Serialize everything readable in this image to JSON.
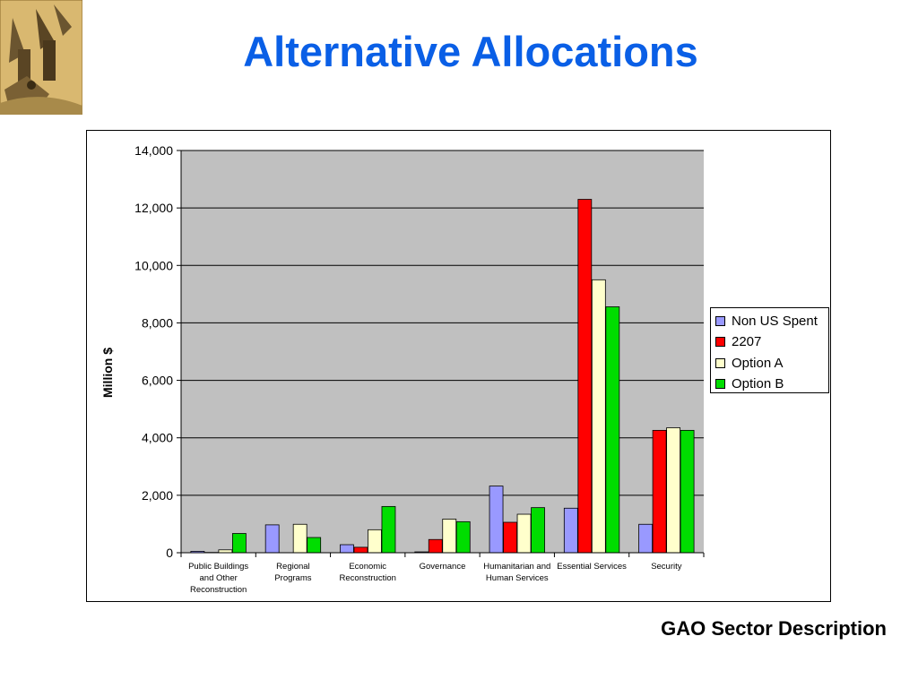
{
  "slide": {
    "title": "Alternative Allocations",
    "caption": "GAO Sector Description"
  },
  "chart_data": {
    "type": "bar",
    "ylabel": "Million $",
    "ylim": [
      0,
      14000
    ],
    "yticks": [
      "0",
      "2,000",
      "4,000",
      "6,000",
      "8,000",
      "10,000",
      "12,000",
      "14,000"
    ],
    "ytick_values": [
      0,
      2000,
      4000,
      6000,
      8000,
      10000,
      12000,
      14000
    ],
    "grid": true,
    "legend_position": "right",
    "categories": [
      [
        "Public Buildings",
        "and Other",
        "Reconstruction"
      ],
      [
        "Regional",
        "Programs"
      ],
      [
        "Economic",
        "Reconstruction"
      ],
      [
        "Governance"
      ],
      [
        "Humanitarian and",
        "Human Services"
      ],
      [
        "Essential Services"
      ],
      [
        "Security"
      ]
    ],
    "series": [
      {
        "name": "Non US Spent",
        "color": "#9999ff",
        "values": [
          50,
          970,
          280,
          30,
          2320,
          1550,
          990
        ]
      },
      {
        "name": "2207",
        "color": "#ff0000",
        "values": [
          10,
          0,
          190,
          460,
          1060,
          12300,
          4260
        ]
      },
      {
        "name": "Option A",
        "color": "#ffffcc",
        "values": [
          100,
          990,
          800,
          1170,
          1340,
          9500,
          4350
        ]
      },
      {
        "name": "Option B",
        "color": "#00dd00",
        "values": [
          670,
          530,
          1610,
          1080,
          1570,
          8560,
          4260
        ]
      }
    ]
  }
}
